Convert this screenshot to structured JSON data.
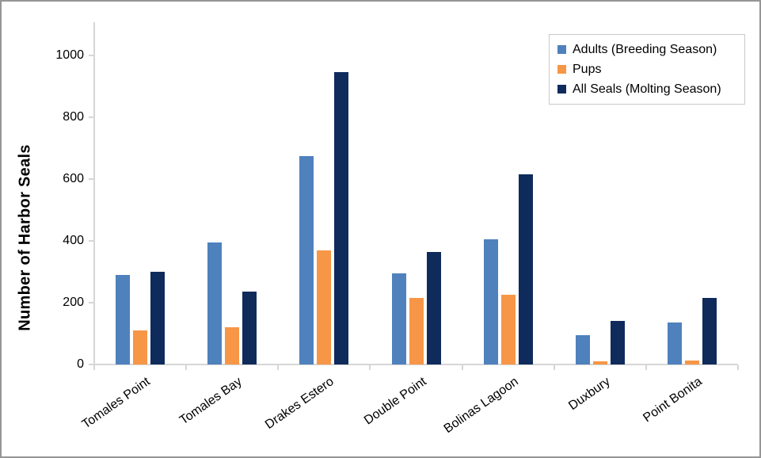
{
  "chart_data": {
    "type": "bar",
    "title": "",
    "xlabel": "",
    "ylabel": "Number of Harbor Seals",
    "categories": [
      "Tomales Point",
      "Tomales Bay",
      "Drakes Estero",
      "Double Point",
      "Bolinas Lagoon",
      "Duxbury",
      "Point Bonita"
    ],
    "series": [
      {
        "name": "Adults (Breeding Season)",
        "color": "#4F81BD",
        "values": [
          290,
          395,
          675,
          295,
          405,
          95,
          135
        ]
      },
      {
        "name": "Pups",
        "color": "#F79646",
        "values": [
          110,
          120,
          370,
          215,
          225,
          10,
          12
        ]
      },
      {
        "name": "All Seals (Molting Season)",
        "color": "#0F2B5C",
        "values": [
          300,
          235,
          945,
          365,
          615,
          140,
          215
        ]
      }
    ],
    "ylim": [
      0,
      1100
    ],
    "yticks": [
      0,
      200,
      400,
      600,
      800,
      1000
    ],
    "grid": false,
    "legend_position": "top-right",
    "plot_background": "#ffffff",
    "axis_color": "#d6d6d6",
    "frame_border_color": "#969696"
  }
}
